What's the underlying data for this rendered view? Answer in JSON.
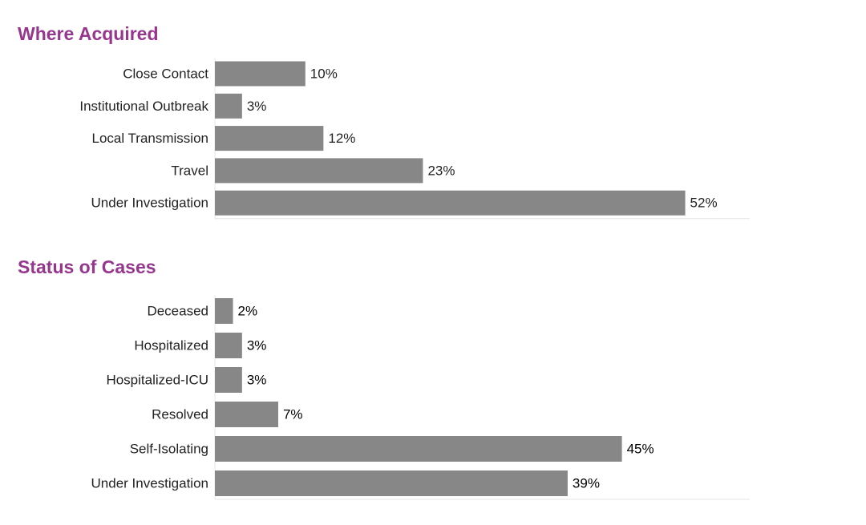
{
  "chart_data": [
    {
      "type": "bar",
      "orientation": "horizontal",
      "title": "Where Acquired",
      "categories": [
        "Close Contact",
        "Institutional Outbreak",
        "Local Transmission",
        "Travel",
        "Under Investigation"
      ],
      "values": [
        10,
        3,
        12,
        23,
        52
      ],
      "value_labels": [
        "10%",
        "3%",
        "12%",
        "23%",
        "52%"
      ],
      "unit": "%",
      "xlim": [
        0,
        60
      ],
      "grid": false,
      "bar_color": "#878787"
    },
    {
      "type": "bar",
      "orientation": "horizontal",
      "title": "Status of Cases",
      "categories": [
        "Deceased",
        "Hospitalized",
        "Hospitalized-ICU",
        "Resolved",
        "Self-Isolating",
        "Under Investigation"
      ],
      "values": [
        2,
        3,
        3,
        7,
        45,
        39
      ],
      "value_labels": [
        "2%",
        "3%",
        "3%",
        "7%",
        "45%",
        "39%"
      ],
      "unit": "%",
      "xlim": [
        0,
        60
      ],
      "grid": false,
      "bar_color": "#878787"
    }
  ],
  "colors": {
    "title": "#96368f",
    "bar": "#878787"
  }
}
